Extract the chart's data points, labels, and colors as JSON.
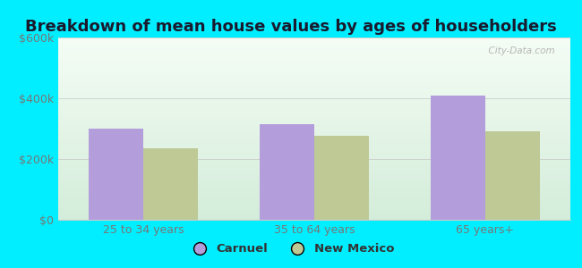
{
  "title": "Breakdown of mean house values by ages of householders",
  "categories": [
    "25 to 34 years",
    "35 to 64 years",
    "65 years+"
  ],
  "carnuel_values": [
    300000,
    315000,
    410000
  ],
  "newmexico_values": [
    235000,
    275000,
    290000
  ],
  "ylim": [
    0,
    600000
  ],
  "yticks": [
    0,
    200000,
    400000,
    600000
  ],
  "ytick_labels": [
    "$0",
    "$200k",
    "$400k",
    "$600k"
  ],
  "carnuel_color": "#b39ddb",
  "newmexico_color": "#bec995",
  "background_outer": "#00eeff",
  "legend_carnuel": "Carnuel",
  "legend_newmexico": "New Mexico",
  "bar_width": 0.32,
  "title_fontsize": 13,
  "tick_fontsize": 9,
  "legend_fontsize": 9.5,
  "watermark_text": "  City-Data.com"
}
